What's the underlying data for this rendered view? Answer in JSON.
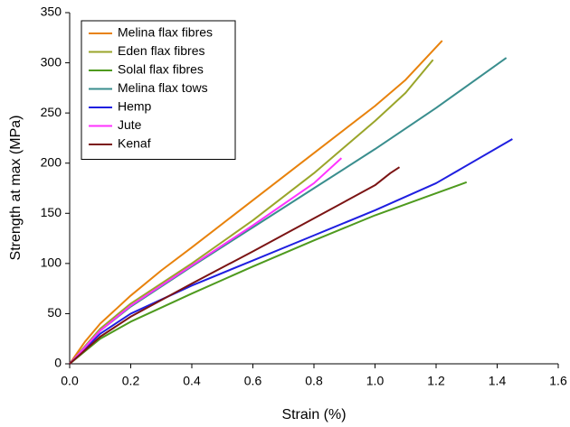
{
  "chart_data": {
    "type": "line",
    "x_label": "Strain (%)",
    "y_label": "Strength at max (MPa)",
    "xlim": [
      0,
      1.6
    ],
    "ylim": [
      0,
      350
    ],
    "xticks": [
      {
        "value": 0,
        "label": "0.0"
      },
      0.2,
      0.4,
      0.6,
      0.8,
      {
        "value": 1,
        "label": "1.0"
      },
      1.2,
      1.4,
      1.6
    ],
    "yticks": [
      0,
      50,
      100,
      150,
      200,
      250,
      300,
      350
    ],
    "legend": "upper left",
    "series": [
      {
        "name": "Melina flax fibres",
        "color": "#e8820c",
        "x": [
          0,
          0.05,
          0.1,
          0.2,
          0.3,
          0.4,
          0.6,
          0.8,
          1.0,
          1.1,
          1.22
        ],
        "values": [
          0,
          22,
          40,
          68,
          93,
          116,
          163,
          210,
          257,
          283,
          322
        ]
      },
      {
        "name": "Eden flax fibres",
        "color": "#9aa52a",
        "x": [
          0,
          0.1,
          0.2,
          0.4,
          0.6,
          0.8,
          1.0,
          1.1,
          1.19
        ],
        "values": [
          0,
          35,
          60,
          100,
          143,
          190,
          242,
          270,
          303
        ]
      },
      {
        "name": "Solal flax fibres",
        "color": "#4e9a1e",
        "x": [
          0,
          0.1,
          0.2,
          0.4,
          0.6,
          0.8,
          1.0,
          1.2,
          1.3
        ],
        "values": [
          0,
          25,
          42,
          70,
          97,
          123,
          148,
          170,
          181
        ]
      },
      {
        "name": "Melina flax tows",
        "color": "#3a8e8e",
        "x": [
          0,
          0.1,
          0.2,
          0.4,
          0.6,
          0.8,
          1.0,
          1.2,
          1.43
        ],
        "values": [
          0,
          33,
          57,
          97,
          136,
          175,
          214,
          255,
          305
        ]
      },
      {
        "name": "Hemp",
        "color": "#1f1fe0",
        "x": [
          0,
          0.1,
          0.2,
          0.4,
          0.6,
          0.8,
          1.0,
          1.2,
          1.45
        ],
        "values": [
          0,
          30,
          50,
          78,
          103,
          128,
          153,
          180,
          224
        ]
      },
      {
        "name": "Jute",
        "color": "#ff33ff",
        "x": [
          0,
          0.1,
          0.2,
          0.4,
          0.6,
          0.8,
          0.89
        ],
        "values": [
          0,
          33,
          58,
          98,
          138,
          180,
          205
        ]
      },
      {
        "name": "Kenaf",
        "color": "#7b1414",
        "x": [
          0,
          0.1,
          0.2,
          0.4,
          0.6,
          0.8,
          1.0,
          1.05,
          1.08
        ],
        "values": [
          0,
          27,
          47,
          80,
          112,
          145,
          178,
          190,
          196
        ]
      }
    ]
  }
}
